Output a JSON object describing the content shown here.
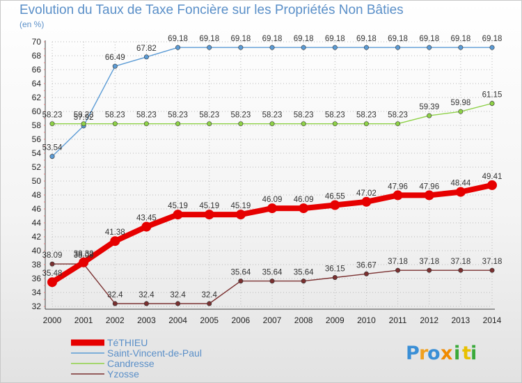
{
  "chart_data": {
    "type": "line",
    "title": "Evolution du Taux de Taxe Foncière sur les Propriétés Non Bâties",
    "subtitle": "(en %)",
    "x": [
      2000,
      2001,
      2002,
      2003,
      2004,
      2005,
      2006,
      2007,
      2008,
      2009,
      2010,
      2011,
      2012,
      2013,
      2014
    ],
    "ylim": [
      32,
      70
    ],
    "yticks": [
      32,
      34,
      36,
      38,
      40,
      42,
      44,
      46,
      48,
      50,
      52,
      54,
      56,
      58,
      60,
      62,
      64,
      66,
      68,
      70
    ],
    "grid": true,
    "series": [
      {
        "name": "TéTHIEU",
        "color": "#e60000",
        "values": [
          35.48,
          38.32,
          41.38,
          43.45,
          45.19,
          45.19,
          45.19,
          46.09,
          46.09,
          46.55,
          47.02,
          47.96,
          47.96,
          48.44,
          49.41
        ],
        "labels": [
          "35.48",
          "38.32",
          "41.38",
          "43.45",
          "45.19",
          "45.19",
          "45.19",
          "46.09",
          "46.09",
          "46.55",
          "47.02",
          "47.96",
          "47.96",
          "48.44",
          "49.41"
        ]
      },
      {
        "name": "Saint-Vincent-de-Paul",
        "color": "#5b9bd5",
        "values": [
          53.54,
          57.92,
          66.49,
          67.82,
          69.18,
          69.18,
          69.18,
          69.18,
          69.18,
          69.18,
          69.18,
          69.18,
          69.18,
          69.18,
          69.18
        ],
        "labels": [
          "53.54",
          "57.92",
          "66.49",
          "67.82",
          "69.18",
          "69.18",
          "69.18",
          "69.18",
          "69.18",
          "69.18",
          "69.18",
          "69.18",
          "69.18",
          "69.18",
          "69.18"
        ]
      },
      {
        "name": "Candresse",
        "color": "#8ed147",
        "values": [
          58.23,
          58.23,
          58.23,
          58.23,
          58.23,
          58.23,
          58.23,
          58.23,
          58.23,
          58.23,
          58.23,
          58.23,
          59.39,
          59.98,
          61.15
        ],
        "labels": [
          "58.23",
          "58.23",
          "58.23",
          "58.23",
          "58.23",
          "58.23",
          "58.23",
          "58.23",
          "58.23",
          "58.23",
          "58.23",
          "58.23",
          "59.39",
          "59.98",
          "61.15"
        ]
      },
      {
        "name": "Yzosse",
        "color": "#7a3030",
        "values": [
          38.09,
          38.09,
          32.4,
          32.4,
          32.4,
          32.4,
          35.64,
          35.64,
          35.64,
          36.15,
          36.67,
          37.18,
          37.18,
          37.18,
          37.18
        ],
        "labels": [
          "38.09",
          "38.09",
          "32.4",
          "32.4",
          "32.4",
          "32.4",
          "35.64",
          "35.64",
          "35.64",
          "36.15",
          "36.67",
          "37.18",
          "37.18",
          "37.18",
          "37.18"
        ]
      }
    ]
  },
  "brand": {
    "letters": [
      "P",
      "r",
      "o",
      "x",
      "i",
      "t",
      "i"
    ],
    "colors": [
      "#3a8fd6",
      "#f0a020",
      "#3a8fd6",
      "#f08a00",
      "#3aaa3a",
      "#e8c000",
      "#3aaa3a"
    ]
  }
}
